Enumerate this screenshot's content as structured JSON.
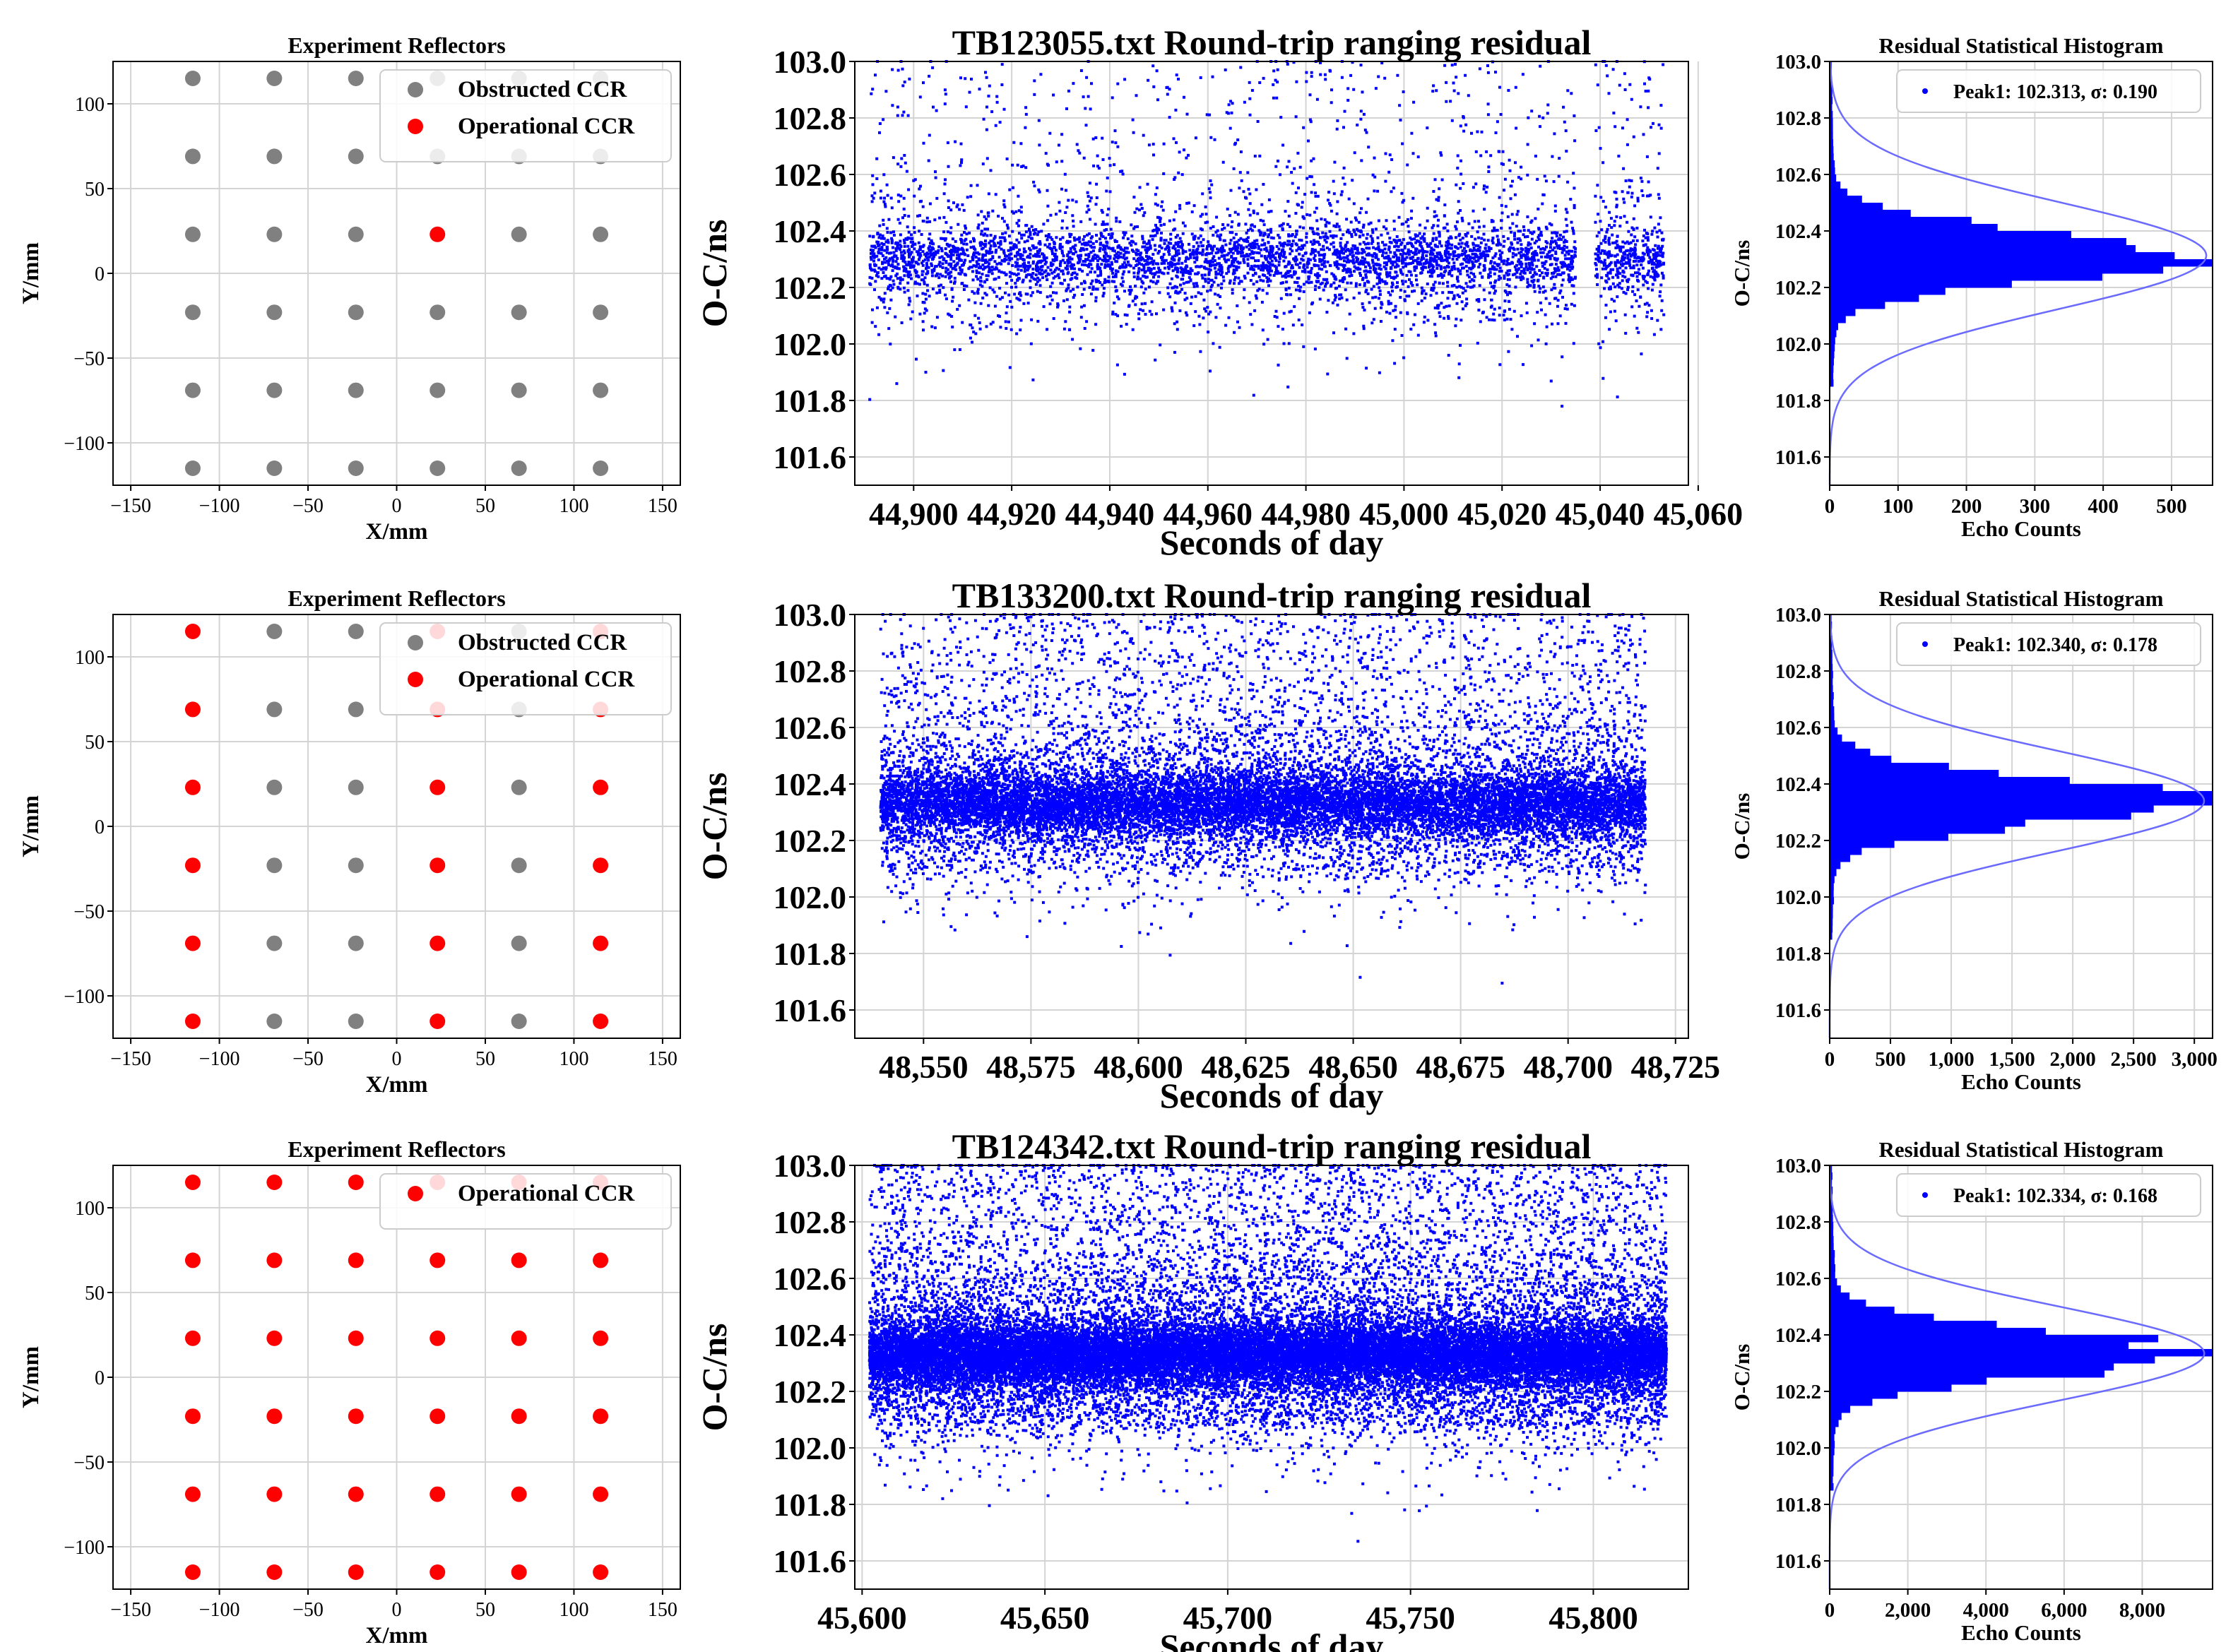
{
  "colors": {
    "operational": "#ff0000",
    "obstructed": "#808080",
    "points": "#0000ff",
    "fit": "#6b6bff"
  },
  "chart_data": [
    {
      "type": "scatter",
      "kind": "reflectors",
      "title": "Experiment Reflectors",
      "xlabel": "X/mm",
      "ylabel": "Y/mm",
      "xlim": [
        -160,
        160
      ],
      "ylim": [
        -125,
        125
      ],
      "xticks": [
        -150,
        -100,
        -50,
        0,
        50,
        100,
        150
      ],
      "yticks": [
        -100,
        -50,
        0,
        50,
        100
      ],
      "xtick_labels": [
        "−150",
        "−100",
        "−50",
        "0",
        "50",
        "100",
        "150"
      ],
      "ytick_labels": [
        "−100",
        "−50",
        "0",
        "50",
        "100"
      ],
      "grid_coords": [
        -115,
        -69,
        -23,
        23,
        69,
        115
      ],
      "operational": [
        [
          23,
          23
        ]
      ],
      "legend": [
        "Obstructed CCR",
        "Operational CCR"
      ]
    },
    {
      "type": "scatter",
      "kind": "residual",
      "title": "TB123055.txt Round-trip ranging residual",
      "xlabel": "Seconds of day",
      "ylabel": "O-C/ns",
      "xlim": [
        44888,
        45058
      ],
      "ylim": [
        101.5,
        103.0
      ],
      "xticks": [
        44900,
        44920,
        44940,
        44960,
        44980,
        45000,
        45020,
        45040,
        45060
      ],
      "xtick_labels": [
        "44,900",
        "44,920",
        "44,940",
        "44,960",
        "44,980",
        "45,000",
        "45,020",
        "45,040",
        "45,060"
      ],
      "yticks": [
        101.6,
        101.8,
        102.0,
        102.2,
        102.4,
        102.6,
        102.8,
        103.0
      ],
      "ytick_labels": [
        "101.6",
        "101.8",
        "102.0",
        "102.2",
        "102.4",
        "102.6",
        "102.8",
        "103.0"
      ],
      "x_range": [
        44891,
        45053
      ],
      "gap": [
        45035,
        45039
      ],
      "center": 102.3,
      "sigma": 0.1,
      "n_points": 5200,
      "seed": 11
    },
    {
      "type": "histogram",
      "kind": "hist",
      "title": "Residual Statistical Histogram",
      "xlabel": "Echo Counts",
      "ylabel": "O-C/ns",
      "xlim": [
        0,
        560
      ],
      "ylim": [
        101.5,
        103.0
      ],
      "xticks": [
        0,
        100,
        200,
        300,
        400,
        500
      ],
      "xtick_labels": [
        "0",
        "100",
        "200",
        "300",
        "400",
        "500"
      ],
      "yticks": [
        101.6,
        101.8,
        102.0,
        102.2,
        102.4,
        102.6,
        102.8,
        103.0
      ],
      "ytick_labels": [
        "101.6",
        "101.8",
        "102.0",
        "102.2",
        "102.4",
        "102.6",
        "102.8",
        "103.0"
      ],
      "peak_value": 102.313,
      "sigma_fit": 0.19,
      "hist_sigma": 0.085,
      "peak_count": 540,
      "tail_count": 14,
      "legend": "Peak1: 102.313, σ: 0.190"
    },
    {
      "type": "scatter",
      "kind": "reflectors",
      "title": "Experiment Reflectors",
      "xlabel": "X/mm",
      "ylabel": "Y/mm",
      "xlim": [
        -160,
        160
      ],
      "ylim": [
        -125,
        125
      ],
      "xticks": [
        -150,
        -100,
        -50,
        0,
        50,
        100,
        150
      ],
      "yticks": [
        -100,
        -50,
        0,
        50,
        100
      ],
      "xtick_labels": [
        "−150",
        "−100",
        "−50",
        "0",
        "50",
        "100",
        "150"
      ],
      "ytick_labels": [
        "−100",
        "−50",
        "0",
        "50",
        "100"
      ],
      "grid_coords": [
        -115,
        -69,
        -23,
        23,
        69,
        115
      ],
      "operational": [
        [
          -115,
          115
        ],
        [
          -115,
          69
        ],
        [
          -115,
          23
        ],
        [
          -115,
          -23
        ],
        [
          -115,
          -69
        ],
        [
          -115,
          -115
        ],
        [
          23,
          115
        ],
        [
          23,
          69
        ],
        [
          23,
          23
        ],
        [
          23,
          -23
        ],
        [
          23,
          -69
        ],
        [
          23,
          -115
        ],
        [
          115,
          115
        ],
        [
          115,
          69
        ],
        [
          115,
          23
        ],
        [
          115,
          -23
        ],
        [
          115,
          -69
        ],
        [
          115,
          -115
        ]
      ],
      "legend": [
        "Obstructed CCR",
        "Operational CCR"
      ]
    },
    {
      "type": "scatter",
      "kind": "residual",
      "title": "TB133200.txt Round-trip ranging residual",
      "xlabel": "Seconds of day",
      "ylabel": "O-C/ns",
      "xlim": [
        48534,
        48728
      ],
      "ylim": [
        101.5,
        103.0
      ],
      "xticks": [
        48550,
        48575,
        48600,
        48625,
        48650,
        48675,
        48700,
        48725
      ],
      "xtick_labels": [
        "48,550",
        "48,575",
        "48,600",
        "48,625",
        "48,650",
        "48,675",
        "48,700",
        "48,725"
      ],
      "yticks": [
        101.6,
        101.8,
        102.0,
        102.2,
        102.4,
        102.6,
        102.8,
        103.0
      ],
      "ytick_labels": [
        "101.6",
        "101.8",
        "102.0",
        "102.2",
        "102.4",
        "102.6",
        "102.8",
        "103.0"
      ],
      "x_range": [
        48540,
        48718
      ],
      "gap": null,
      "center": 102.33,
      "sigma": 0.1,
      "n_points": 17000,
      "seed": 23
    },
    {
      "type": "histogram",
      "kind": "hist",
      "title": "Residual Statistical Histogram",
      "xlabel": "Echo Counts",
      "ylabel": "O-C/ns",
      "xlim": [
        0,
        3150
      ],
      "ylim": [
        101.5,
        103.0
      ],
      "xticks": [
        0,
        500,
        1000,
        1500,
        2000,
        2500,
        3000
      ],
      "xtick_labels": [
        "0",
        "500",
        "1,000",
        "1,500",
        "2,000",
        "2,500",
        "3,000"
      ],
      "yticks": [
        101.6,
        101.8,
        102.0,
        102.2,
        102.4,
        102.6,
        102.8,
        103.0
      ],
      "ytick_labels": [
        "101.6",
        "101.8",
        "102.0",
        "102.2",
        "102.4",
        "102.6",
        "102.8",
        "103.0"
      ],
      "peak_value": 102.34,
      "sigma_fit": 0.178,
      "hist_sigma": 0.08,
      "peak_count": 3020,
      "tail_count": 70,
      "legend": "Peak1: 102.340, σ: 0.178"
    },
    {
      "type": "scatter",
      "kind": "reflectors",
      "title": "Experiment Reflectors",
      "xlabel": "X/mm",
      "ylabel": "Y/mm",
      "xlim": [
        -160,
        160
      ],
      "ylim": [
        -125,
        125
      ],
      "xticks": [
        -150,
        -100,
        -50,
        0,
        50,
        100,
        150
      ],
      "yticks": [
        -100,
        -50,
        0,
        50,
        100
      ],
      "xtick_labels": [
        "−150",
        "−100",
        "−50",
        "0",
        "50",
        "100",
        "150"
      ],
      "ytick_labels": [
        "−100",
        "−50",
        "0",
        "50",
        "100"
      ],
      "grid_coords": [
        -115,
        -69,
        -23,
        23,
        69,
        115
      ],
      "operational": "all",
      "legend": [
        "Operational CCR"
      ]
    },
    {
      "type": "scatter",
      "kind": "residual",
      "title": "TB124342.txt Round-trip ranging residual",
      "xlabel": "Seconds of day",
      "ylabel": "O-C/ns",
      "xlim": [
        45598,
        45826
      ],
      "ylim": [
        101.5,
        103.0
      ],
      "xticks": [
        45600,
        45650,
        45700,
        45750,
        45800
      ],
      "xtick_labels": [
        "45,600",
        "45,650",
        "45,700",
        "45,750",
        "45,800"
      ],
      "yticks": [
        101.6,
        101.8,
        102.0,
        102.2,
        102.4,
        102.6,
        102.8,
        103.0
      ],
      "ytick_labels": [
        "101.6",
        "101.8",
        "102.0",
        "102.2",
        "102.4",
        "102.6",
        "102.8",
        "103.0"
      ],
      "x_range": [
        45602,
        45820
      ],
      "gap": null,
      "center": 102.33,
      "sigma": 0.1,
      "n_points": 30000,
      "seed": 37
    },
    {
      "type": "histogram",
      "kind": "hist",
      "title": "Residual Statistical Histogram",
      "xlabel": "Echo Counts",
      "ylabel": "O-C/ns",
      "xlim": [
        0,
        9800
      ],
      "ylim": [
        101.5,
        103.0
      ],
      "xticks": [
        0,
        2000,
        4000,
        6000,
        8000
      ],
      "xtick_labels": [
        "0",
        "2,000",
        "4,000",
        "6,000",
        "8,000"
      ],
      "yticks": [
        101.6,
        101.8,
        102.0,
        102.2,
        102.4,
        102.6,
        102.8,
        103.0
      ],
      "ytick_labels": [
        "101.6",
        "101.8",
        "102.0",
        "102.2",
        "102.4",
        "102.6",
        "102.8",
        "103.0"
      ],
      "peak_value": 102.334,
      "sigma_fit": 0.168,
      "hist_sigma": 0.078,
      "peak_count": 9400,
      "tail_count": 260,
      "legend": "Peak1: 102.334, σ: 0.168"
    }
  ]
}
